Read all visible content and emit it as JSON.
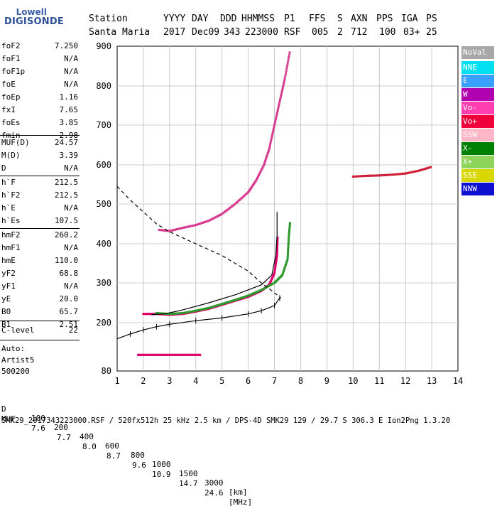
{
  "logo": {
    "line1": "Lowell",
    "line2": "DIGISONDE"
  },
  "header": {
    "labels": [
      "Station",
      "YYYY",
      "DAY",
      "DDD",
      "HHMMSS",
      "P1",
      "FFS",
      "S",
      "AXN",
      "PPS",
      "IGA",
      "PS"
    ],
    "values": [
      "Santa Maria",
      "2017",
      "Dec09",
      "343",
      "223000",
      "RSF",
      "005",
      "2",
      "712",
      "100",
      "03+",
      "25"
    ]
  },
  "params": [
    {
      "k": "foF2",
      "v": "7.250"
    },
    {
      "k": "foF1",
      "v": "N/A"
    },
    {
      "k": "foF1p",
      "v": "N/A"
    },
    {
      "k": "foE",
      "v": "N/A"
    },
    {
      "k": "foEp",
      "v": "1.16"
    },
    {
      "k": "fxI",
      "v": "7.65"
    },
    {
      "k": "foEs",
      "v": "3.85"
    },
    {
      "k": "fmin",
      "v": "2.98"
    },
    {
      "k": "MUF(D)",
      "v": "24.57"
    },
    {
      "k": "M(D)",
      "v": "3.39"
    },
    {
      "k": "D",
      "v": "N/A"
    },
    {
      "k": "h`F",
      "v": "212.5"
    },
    {
      "k": "h`F2",
      "v": "212.5"
    },
    {
      "k": "h`E",
      "v": "N/A"
    },
    {
      "k": "h`Es",
      "v": "107.5"
    },
    {
      "k": "hmF2",
      "v": "260.2"
    },
    {
      "k": "hmF1",
      "v": "N/A"
    },
    {
      "k": "hmE",
      "v": "110.0"
    },
    {
      "k": "yF2",
      "v": "68.8"
    },
    {
      "k": "yF1",
      "v": "N/A"
    },
    {
      "k": "yE",
      "v": "20.0"
    },
    {
      "k": "B0",
      "v": "65.7"
    },
    {
      "k": "B1",
      "v": "2.51"
    },
    {
      "k": "C-level",
      "v": "22"
    }
  ],
  "auto": [
    "Auto:",
    "Artist5",
    "500200"
  ],
  "legend": [
    {
      "label": "NoVal",
      "color": "#a8a8a8"
    },
    {
      "label": "NNE",
      "color": "#00e0f0"
    },
    {
      "label": "E",
      "color": "#3aa0ff"
    },
    {
      "label": "W",
      "color": "#b000b0"
    },
    {
      "label": "Vo-",
      "color": "#ff3fb0"
    },
    {
      "label": "Vo+",
      "color": "#f0003a"
    },
    {
      "label": "SSW",
      "color": "#ffb6c6"
    },
    {
      "label": "X-",
      "color": "#008000"
    },
    {
      "label": "X+",
      "color": "#8fd45a"
    },
    {
      "label": "SSE",
      "color": "#d8d800"
    },
    {
      "label": "NNW",
      "color": "#1010d0"
    }
  ],
  "bottom": {
    "row1": [
      "D",
      "100",
      "200",
      "400",
      "600",
      "800",
      "1000",
      "1500",
      "3000",
      "[km]"
    ],
    "row2": [
      "MUF",
      "7.6",
      "7.7",
      "8.0",
      "8.7",
      "9.6",
      "10.9",
      "14.7",
      "24.6",
      "[MHz]"
    ],
    "footer": "SMK29_2017343223000.RSF / 520fx512h 25 kHz 2.5 km / DPS-4D SMK29 129 / 29.7 S 306.3 E Ion2Png 1.3.20"
  },
  "chart_data": {
    "type": "scatter",
    "xlabel": "",
    "ylabel": "",
    "xlim": [
      1,
      14
    ],
    "ylim": [
      80,
      900
    ],
    "x_ticks": [
      "1",
      "2",
      "3",
      "4",
      "5",
      "6",
      "7",
      "8",
      "9",
      "10",
      "11",
      "12",
      "13",
      "14"
    ],
    "y_ticks": [
      "80",
      "200",
      "300",
      "400",
      "500",
      "600",
      "700",
      "800",
      "900"
    ],
    "grid": true,
    "series": [
      {
        "name": "O-trace",
        "color": "#e0006a",
        "points": [
          [
            2.0,
            222
          ],
          [
            2.5,
            222
          ],
          [
            3.0,
            220
          ],
          [
            3.5,
            222
          ],
          [
            4.0,
            228
          ],
          [
            4.5,
            235
          ],
          [
            5.0,
            245
          ],
          [
            5.5,
            255
          ],
          [
            6.0,
            265
          ],
          [
            6.5,
            280
          ],
          [
            6.8,
            295
          ],
          [
            7.0,
            325
          ],
          [
            7.1,
            370
          ],
          [
            7.12,
            420
          ]
        ]
      },
      {
        "name": "X-trace",
        "color": "#2e9a2e",
        "points": [
          [
            2.5,
            224
          ],
          [
            3.0,
            222
          ],
          [
            3.5,
            224
          ],
          [
            4.0,
            230
          ],
          [
            4.5,
            237
          ],
          [
            5.0,
            247
          ],
          [
            5.5,
            257
          ],
          [
            6.0,
            268
          ],
          [
            6.5,
            282
          ],
          [
            7.0,
            300
          ],
          [
            7.3,
            320
          ],
          [
            7.5,
            360
          ],
          [
            7.55,
            420
          ],
          [
            7.6,
            455
          ]
        ]
      },
      {
        "name": "Es-trace",
        "color": "#e0006a",
        "points": [
          [
            1.8,
            120
          ],
          [
            2.2,
            120
          ],
          [
            2.6,
            120
          ],
          [
            3.0,
            120
          ],
          [
            3.4,
            120
          ],
          [
            3.8,
            120
          ],
          [
            4.2,
            120
          ]
        ]
      },
      {
        "name": "F-multihop",
        "color": "#d83b8f",
        "points": [
          [
            2.6,
            435
          ],
          [
            3.0,
            432
          ],
          [
            3.5,
            440
          ],
          [
            4.0,
            447
          ],
          [
            4.5,
            458
          ],
          [
            5.0,
            475
          ],
          [
            5.5,
            500
          ],
          [
            6.0,
            530
          ],
          [
            6.3,
            560
          ],
          [
            6.6,
            600
          ],
          [
            6.8,
            640
          ],
          [
            7.0,
            700
          ],
          [
            7.2,
            760
          ],
          [
            7.4,
            820
          ],
          [
            7.6,
            890
          ]
        ]
      },
      {
        "name": "Spread",
        "color": "#d0203a",
        "points": [
          [
            10.0,
            570
          ],
          [
            10.5,
            572
          ],
          [
            11.0,
            573
          ],
          [
            11.5,
            575
          ],
          [
            12.0,
            578
          ],
          [
            12.5,
            585
          ],
          [
            13.0,
            595
          ]
        ]
      }
    ],
    "profile_dashed": [
      [
        1.0,
        545
      ],
      [
        1.5,
        510
      ],
      [
        2.0,
        480
      ],
      [
        2.5,
        450
      ],
      [
        3.0,
        430
      ],
      [
        4.0,
        400
      ],
      [
        5.0,
        370
      ],
      [
        6.0,
        330
      ],
      [
        6.5,
        300
      ],
      [
        7.0,
        275
      ],
      [
        7.25,
        262
      ]
    ],
    "profile_model": [
      [
        1.0,
        160
      ],
      [
        1.5,
        172
      ],
      [
        2.0,
        182
      ],
      [
        2.5,
        190
      ],
      [
        3.0,
        196
      ],
      [
        4.0,
        205
      ],
      [
        5.0,
        212
      ],
      [
        6.0,
        222
      ],
      [
        6.5,
        230
      ],
      [
        7.0,
        243
      ],
      [
        7.2,
        262
      ]
    ],
    "cusp_curve": [
      [
        7.1,
        480
      ],
      [
        7.1,
        420
      ],
      [
        7.05,
        370
      ],
      [
        6.9,
        320
      ],
      [
        6.5,
        295
      ],
      [
        5.5,
        270
      ],
      [
        4.5,
        250
      ],
      [
        3.5,
        232
      ],
      [
        2.8,
        222
      ],
      [
        2.3,
        220
      ]
    ],
    "legend_position": "right"
  }
}
